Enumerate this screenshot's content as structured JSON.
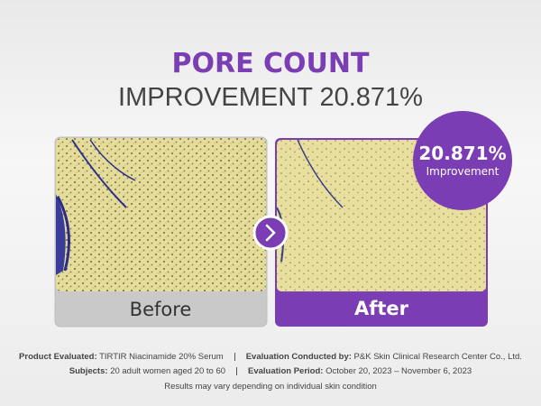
{
  "header": {
    "title": "PORE COUNT",
    "subtitle": "IMPROVEMENT 20.871%"
  },
  "badge": {
    "value": "20.871%",
    "label": "Improvement"
  },
  "panels": [
    {
      "label": "Before"
    },
    {
      "label": "After"
    }
  ],
  "footer": {
    "product_label": "Product Evaluated:",
    "product": "TIRTIR Niacinamide 20% Serum",
    "conducted_label": "Evaluation Conducted by:",
    "conducted": "P&K Skin Clinical Research Center Co., Ltd.",
    "subjects_label": "Subjects:",
    "subjects": "20 adult women aged 20 to 60",
    "period_label": "Evaluation Period:",
    "period": "October 20, 2023 – November 6, 2023",
    "note": "Results may vary depending on individual skin condition"
  }
}
